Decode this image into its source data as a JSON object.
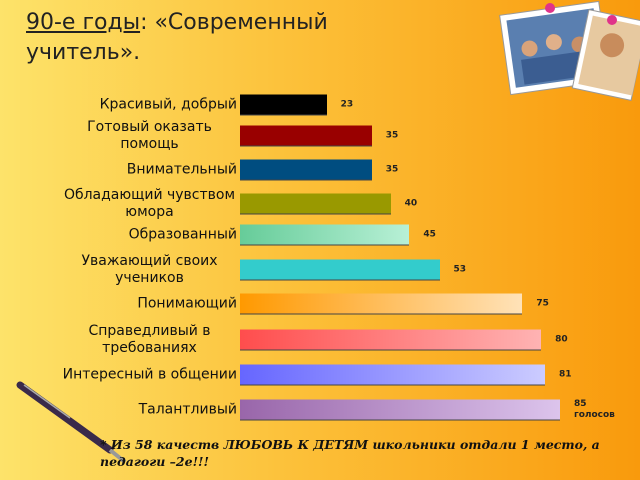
{
  "chart_data": {
    "type": "bar",
    "orientation": "horizontal",
    "title_underlined": "90-е годы",
    "title_rest": ": «Современный учитель».",
    "categories": [
      "Красивый, добрый",
      "Готовый оказать помощь",
      "Внимательный",
      "Обладающий чувством юмора",
      "Образованный",
      "Уважающий своих учеников",
      "Понимающий",
      "Справедливый в требованиях",
      "Интересный в общении",
      "Талантливый"
    ],
    "values": [
      23,
      35,
      35,
      40,
      45,
      53,
      75,
      80,
      81,
      85
    ],
    "value_labels": [
      "23",
      "35",
      "35",
      "40",
      "45",
      "53",
      "75",
      "80",
      "81",
      "85 голосов"
    ],
    "colors": [
      [
        "#000000",
        "#000000"
      ],
      [
        "#990000",
        "#990000"
      ],
      [
        "#004d80",
        "#004d80"
      ],
      [
        "#999900",
        "#999900"
      ],
      [
        "#66cc99",
        "#b8f0d6"
      ],
      [
        "#33cccc",
        "#33cccc"
      ],
      [
        "#ff9900",
        "#ffe2b8"
      ],
      [
        "#ff4d4d",
        "#ffb3b3"
      ],
      [
        "#6666ff",
        "#ccccff"
      ],
      [
        "#9966aa",
        "#dcc4ec"
      ]
    ],
    "footnote": "* Из 58 качеств ЛЮБОВЬ К ДЕТЯМ школьники отдали 1 место, а педагоги –2е!!!"
  }
}
